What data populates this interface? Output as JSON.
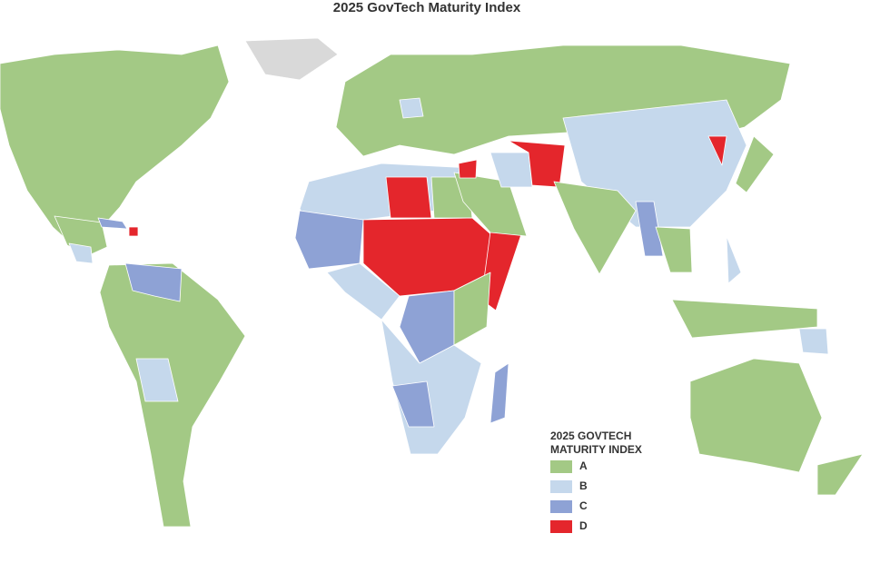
{
  "title": "2025 GovTech Maturity Index",
  "legend": {
    "title": [
      "2025 GOVTECH",
      "MATURITY INDEX"
    ],
    "items": [
      {
        "label": "A",
        "color": "#a3c985"
      },
      {
        "label": "B",
        "color": "#c5d8ec"
      },
      {
        "label": "C",
        "color": "#8ea2d5"
      },
      {
        "label": "D",
        "color": "#e4262c"
      }
    ]
  }
}
